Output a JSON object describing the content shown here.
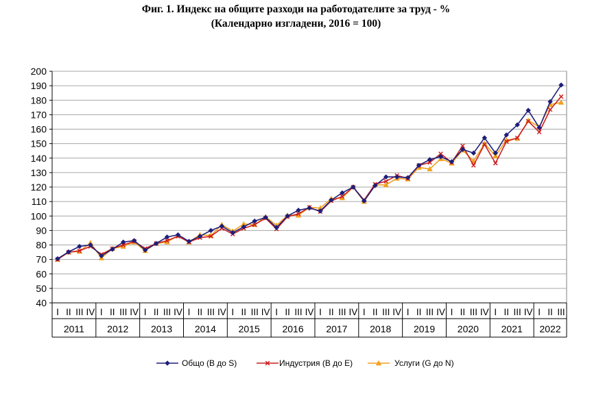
{
  "chart_data": {
    "type": "line",
    "title": "Фиг. 1. Индекс на общите разходи на работодателите за труд - %",
    "subtitle": "(Календарно изгладени, 2016 = 100)",
    "ylim": [
      40,
      200
    ],
    "yticks": [
      40,
      50,
      60,
      70,
      80,
      90,
      100,
      110,
      120,
      130,
      140,
      150,
      160,
      170,
      180,
      190,
      200
    ],
    "grid": true,
    "legend_position": "bottom",
    "years": [
      "2011",
      "2012",
      "2013",
      "2014",
      "2015",
      "2016",
      "2017",
      "2018",
      "2019",
      "2020",
      "2021",
      "2022"
    ],
    "quarters_per_year": [
      4,
      4,
      4,
      4,
      4,
      4,
      4,
      4,
      4,
      4,
      4,
      3
    ],
    "quarter_labels": [
      "I",
      "II",
      "III",
      "IV"
    ],
    "series": [
      {
        "name": "Общо (B до S)",
        "color": "#1f1f7a",
        "marker": "diamond",
        "values": [
          70.5,
          75.2,
          79.0,
          80.0,
          72.5,
          77.0,
          82.0,
          83.0,
          76.5,
          81.0,
          85.5,
          87.0,
          82.5,
          86.0,
          90.0,
          93.0,
          88.5,
          92.5,
          96.5,
          99.0,
          92.0,
          100.0,
          104.0,
          105.5,
          103.5,
          111.0,
          116.0,
          120.0,
          110.5,
          121.0,
          127.0,
          127.0,
          126.5,
          135.0,
          139.0,
          141.0,
          137.5,
          146.0,
          143.5,
          154.0,
          143.5,
          156.0,
          163.0,
          173.0,
          161.0,
          179.0,
          190.5
        ]
      },
      {
        "name": "Индустрия (B до E)",
        "color": "#cc1f1f",
        "marker": "x",
        "values": [
          70.0,
          75.0,
          76.0,
          79.0,
          73.5,
          77.5,
          80.0,
          82.5,
          77.5,
          81.0,
          83.0,
          86.0,
          82.0,
          85.0,
          86.0,
          91.5,
          87.5,
          91.5,
          94.0,
          98.5,
          91.0,
          99.5,
          101.5,
          106.0,
          103.0,
          110.5,
          113.5,
          120.0,
          111.0,
          122.0,
          124.0,
          128.0,
          126.0,
          135.0,
          137.0,
          143.0,
          137.0,
          148.5,
          135.0,
          149.5,
          136.5,
          151.5,
          154.0,
          165.5,
          158.0,
          173.5,
          182.5
        ]
      },
      {
        "name": "Услуги (G до N)",
        "color": "#f0a020",
        "marker": "triangle",
        "values": [
          70.0,
          75.0,
          75.5,
          81.5,
          71.0,
          77.5,
          79.0,
          82.0,
          76.0,
          81.0,
          82.0,
          86.5,
          82.0,
          87.0,
          86.5,
          94.0,
          89.5,
          94.5,
          94.0,
          99.5,
          93.5,
          100.5,
          100.5,
          106.0,
          105.5,
          112.0,
          112.5,
          120.0,
          110.0,
          121.5,
          121.5,
          126.0,
          125.5,
          133.5,
          132.5,
          139.5,
          136.5,
          145.5,
          138.0,
          150.0,
          141.5,
          152.5,
          153.5,
          166.0,
          161.5,
          177.0,
          178.5
        ]
      }
    ]
  }
}
